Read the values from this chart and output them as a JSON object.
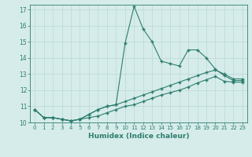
{
  "x": [
    0,
    1,
    2,
    3,
    4,
    5,
    6,
    7,
    8,
    9,
    10,
    11,
    12,
    13,
    14,
    15,
    16,
    17,
    18,
    19,
    20,
    21,
    22,
    23
  ],
  "line1": [
    10.8,
    10.3,
    10.3,
    10.2,
    10.1,
    10.2,
    10.5,
    10.8,
    11.0,
    11.1,
    14.9,
    17.2,
    15.8,
    15.0,
    13.8,
    13.65,
    13.5,
    14.5,
    14.5,
    14.0,
    13.3,
    12.9,
    12.6,
    12.6
  ],
  "line2": [
    10.8,
    10.3,
    10.3,
    10.2,
    10.1,
    10.2,
    10.5,
    10.8,
    11.0,
    11.1,
    11.3,
    11.5,
    11.7,
    11.9,
    12.1,
    12.3,
    12.5,
    12.7,
    12.9,
    13.1,
    13.25,
    13.0,
    12.7,
    12.7
  ],
  "line3": [
    10.8,
    10.3,
    10.3,
    10.2,
    10.1,
    10.2,
    10.3,
    10.4,
    10.6,
    10.8,
    11.0,
    11.1,
    11.3,
    11.5,
    11.7,
    11.85,
    12.0,
    12.2,
    12.45,
    12.65,
    12.85,
    12.55,
    12.5,
    12.5
  ],
  "line_color": "#2d7d6f",
  "background_color": "#d6ecea",
  "grid_color": "#b8d8d4",
  "xlabel": "Humidex (Indice chaleur)",
  "xlim": [
    -0.5,
    23.5
  ],
  "ylim": [
    10,
    17.3
  ],
  "yticks": [
    10,
    11,
    12,
    13,
    14,
    15,
    16,
    17
  ],
  "xticks": [
    0,
    1,
    2,
    3,
    4,
    5,
    6,
    7,
    8,
    9,
    10,
    11,
    12,
    13,
    14,
    15,
    16,
    17,
    18,
    19,
    20,
    21,
    22,
    23
  ]
}
